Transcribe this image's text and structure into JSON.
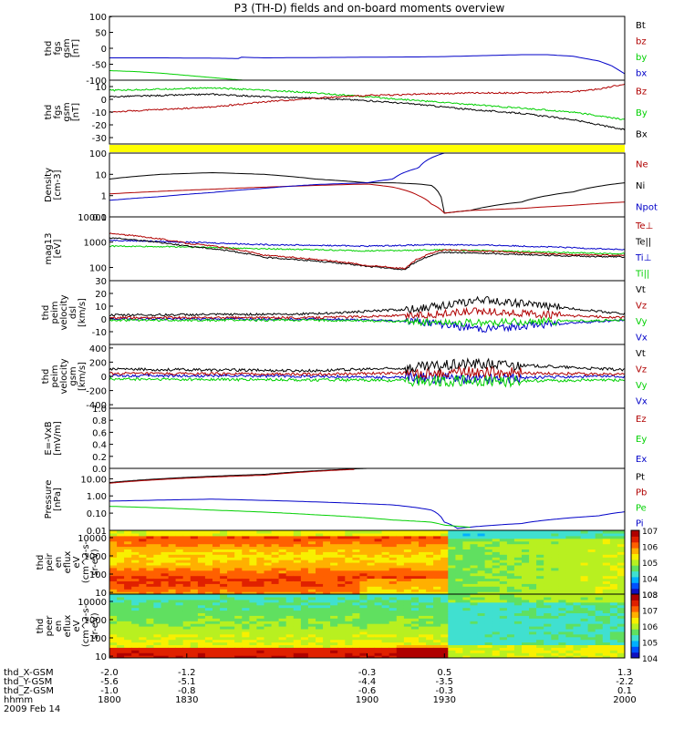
{
  "title": "P3 (TH-D) fields and on-board moments overview",
  "colors": {
    "black": "#000000",
    "red": "#b00000",
    "green": "#00d000",
    "blue": "#0000c8",
    "yellow": "#ffff00",
    "bright_red": "#ff0000"
  },
  "chart_data": [
    {
      "type": "line",
      "name": "fgs_gsm_1",
      "ylabel": [
        "thd",
        "fgs",
        "gsm",
        "[nT]"
      ],
      "ylim": [
        -100,
        100
      ],
      "yticks": [
        "100",
        "50",
        "0",
        "-50",
        "-100"
      ],
      "legend": [
        {
          "label": "Bt",
          "color": "#000000"
        },
        {
          "label": "bz",
          "color": "#b00000"
        },
        {
          "label": "by",
          "color": "#00d000"
        },
        {
          "label": "bx",
          "color": "#0000c8"
        }
      ],
      "series": [
        {
          "name": "bx",
          "color": "#0000c8",
          "x": [
            1800,
            1820,
            1840,
            1850,
            1851,
            1860,
            1880,
            1900,
            1920,
            1930,
            1940,
            1950,
            1960,
            1970,
            1980,
            1990,
            1995,
            2000
          ],
          "y": [
            -30,
            -30,
            -31,
            -32,
            -28,
            -30,
            -29,
            -28,
            -27,
            -26,
            -24,
            -22,
            -20,
            -20,
            -25,
            -40,
            -55,
            -80
          ]
        },
        {
          "name": "by",
          "color": "#00d000",
          "x": [
            1800,
            1810,
            1820,
            1830,
            1840,
            1850,
            1860
          ],
          "y": [
            -70,
            -73,
            -78,
            -85,
            -92,
            -99,
            -104
          ]
        },
        {
          "name": "Bt",
          "color": "#000000",
          "x": [
            1800,
            1801
          ],
          "y": [
            98,
            100
          ]
        },
        {
          "name": "bz",
          "color": "#b00000",
          "x": [
            1800,
            1801
          ],
          "y": [
            100,
            100
          ]
        }
      ]
    },
    {
      "type": "line",
      "name": "fgs_gsm_2",
      "ylabel": [
        "thd",
        "fgs",
        "gsm",
        "[nT]"
      ],
      "ylim": [
        -35,
        15
      ],
      "yticks": [
        "10",
        "0",
        "-10",
        "-20",
        "-30"
      ],
      "legend": [
        {
          "label": "Bz",
          "color": "#b00000"
        },
        {
          "label": "By",
          "color": "#00d000"
        },
        {
          "label": "Bx",
          "color": "#000000"
        }
      ],
      "series": [
        {
          "name": "By",
          "color": "#00d000",
          "x": [
            1800,
            1820,
            1840,
            1860,
            1880,
            1900,
            1920,
            1940,
            1960,
            1980,
            1990,
            2000
          ],
          "y": [
            7,
            8,
            9,
            7,
            5,
            2,
            -1,
            -4,
            -7,
            -10,
            -13,
            -16
          ]
        },
        {
          "name": "Bx",
          "color": "#000000",
          "x": [
            1800,
            1820,
            1840,
            1860,
            1880,
            1900,
            1920,
            1940,
            1960,
            1980,
            1990,
            2000
          ],
          "y": [
            2,
            3,
            4,
            2,
            1,
            -1,
            -4,
            -8,
            -11,
            -16,
            -20,
            -24
          ]
        },
        {
          "name": "Bz",
          "color": "#b00000",
          "x": [
            1800,
            1820,
            1840,
            1860,
            1880,
            1900,
            1920,
            1940,
            1960,
            1980,
            1990,
            2000
          ],
          "y": [
            -10,
            -8,
            -6,
            -2,
            1,
            3,
            4,
            5,
            5,
            6,
            8,
            12
          ]
        }
      ]
    },
    {
      "type": "bar",
      "name": "mode_bar",
      "ylabel": [],
      "color": "#ffff00"
    },
    {
      "type": "line",
      "name": "density",
      "ylabel": [
        "Density",
        "[cm-3]"
      ],
      "yscale": "log",
      "ylim": [
        0.1,
        100
      ],
      "yticks": [
        "100",
        "10",
        "1",
        "0.1"
      ],
      "legend": [
        {
          "label": "Ne",
          "color": "#b00000"
        },
        {
          "label": "Ni",
          "color": "#000000"
        },
        {
          "label": "Npot",
          "color": "#0000c8"
        }
      ],
      "series": [
        {
          "name": "Ni",
          "color": "#000000",
          "x": [
            1800,
            1820,
            1840,
            1860,
            1880,
            1900,
            1910,
            1920,
            1925,
            1930,
            1940,
            1960,
            1980,
            2000
          ],
          "y": [
            6,
            10,
            12,
            10,
            6,
            4,
            4,
            3.5,
            3,
            0.15,
            0.2,
            0.5,
            1.5,
            4
          ]
        },
        {
          "name": "Ne",
          "color": "#b00000",
          "x": [
            1800,
            1820,
            1840,
            1860,
            1880,
            1900,
            1910,
            1920,
            1925,
            1930,
            1940,
            1960,
            1980,
            2000
          ],
          "y": [
            1.2,
            1.6,
            2,
            2.5,
            3,
            3.5,
            2.5,
            1,
            0.4,
            0.15,
            0.2,
            0.25,
            0.35,
            0.5
          ]
        },
        {
          "name": "Npot",
          "color": "#0000c8",
          "x": [
            1800,
            1820,
            1840,
            1860,
            1880,
            1900,
            1910,
            1920,
            1930
          ],
          "y": [
            0.6,
            0.9,
            1.4,
            2.2,
            3.3,
            4,
            6,
            20,
            100
          ]
        }
      ]
    },
    {
      "type": "line",
      "name": "temperature",
      "ylabel": [
        "mag13",
        "[eV]"
      ],
      "yscale": "log",
      "ylim": [
        30,
        10000
      ],
      "yticks": [
        "10000",
        "1000",
        "100"
      ],
      "legend": [
        {
          "label": "Te⊥",
          "color": "#b00000"
        },
        {
          "label": "Te||",
          "color": "#000000"
        },
        {
          "label": "Ti⊥",
          "color": "#0000c8"
        },
        {
          "label": "Ti||",
          "color": "#00d000"
        }
      ],
      "series": [
        {
          "name": "Ti⊥",
          "color": "#0000c8",
          "x": [
            1800,
            1830,
            1860,
            1900,
            1930,
            1950,
            1980,
            2000
          ],
          "y": [
            1200,
            1000,
            800,
            700,
            800,
            750,
            600,
            500
          ]
        },
        {
          "name": "Ti||",
          "color": "#00d000",
          "x": [
            1800,
            1830,
            1860,
            1900,
            1930,
            1950,
            1980,
            2000
          ],
          "y": [
            700,
            650,
            550,
            450,
            500,
            450,
            380,
            350
          ]
        },
        {
          "name": "Te||",
          "color": "#000000",
          "x": [
            1800,
            1830,
            1860,
            1900,
            1915,
            1930,
            1950,
            1980,
            2000
          ],
          "y": [
            1500,
            700,
            250,
            110,
            80,
            400,
            350,
            280,
            260
          ]
        },
        {
          "name": "Te⊥",
          "color": "#b00000",
          "x": [
            1800,
            1830,
            1860,
            1900,
            1915,
            1930,
            1950,
            1980,
            2000
          ],
          "y": [
            2200,
            900,
            300,
            120,
            90,
            500,
            420,
            320,
            300
          ]
        }
      ]
    },
    {
      "type": "line",
      "name": "peim_velocity_dsl",
      "ylabel": [
        "thd",
        "peim",
        "velocity",
        "dsl",
        "[km/s]"
      ],
      "ylim": [
        -20,
        30
      ],
      "yticks": [
        "30",
        "20",
        "10",
        "0",
        "-10"
      ],
      "legend": [
        {
          "label": "Vt",
          "color": "#000000"
        },
        {
          "label": "Vz",
          "color": "#b00000"
        },
        {
          "label": "Vy",
          "color": "#00d000"
        },
        {
          "label": "Vx",
          "color": "#0000c8"
        }
      ],
      "series": [
        {
          "name": "Vx",
          "color": "#0000c8",
          "x": [
            1800,
            1880,
            1920,
            1945,
            1970,
            2000
          ],
          "y": [
            0,
            0,
            -2,
            -8,
            -4,
            -1
          ]
        },
        {
          "name": "Vy",
          "color": "#00d000",
          "x": [
            1800,
            1880,
            1920,
            1945,
            1970,
            2000
          ],
          "y": [
            -1,
            -1,
            -2,
            -3,
            -2,
            -1
          ]
        },
        {
          "name": "Vz",
          "color": "#b00000",
          "x": [
            1800,
            1880,
            1920,
            1945,
            1970,
            2000
          ],
          "y": [
            1,
            1,
            3,
            6,
            3,
            1
          ]
        },
        {
          "name": "Vt",
          "color": "#000000",
          "x": [
            1800,
            1880,
            1920,
            1945,
            1970,
            2000
          ],
          "y": [
            3,
            4,
            8,
            15,
            10,
            4
          ]
        }
      ]
    },
    {
      "type": "line",
      "name": "peim_velocity_gsm",
      "ylabel": [
        "thd",
        "peim",
        "velocity",
        "gsm",
        "[km/s]"
      ],
      "ylim": [
        -450,
        450
      ],
      "yticks": [
        "400",
        "200",
        "0",
        "-200",
        "-400"
      ],
      "legend": [
        {
          "label": "Vt",
          "color": "#000000"
        },
        {
          "label": "Vz",
          "color": "#b00000"
        },
        {
          "label": "Vy",
          "color": "#00d000"
        },
        {
          "label": "Vx",
          "color": "#0000c8"
        }
      ],
      "series": [
        {
          "name": "Vx",
          "color": "#0000c8",
          "x": [
            1800,
            1880,
            1920,
            1940,
            1970,
            2000
          ],
          "y": [
            10,
            0,
            -20,
            -40,
            -10,
            0
          ]
        },
        {
          "name": "Vy",
          "color": "#00d000",
          "x": [
            1800,
            1880,
            1920,
            1940,
            1970,
            2000
          ],
          "y": [
            -40,
            -50,
            -60,
            -70,
            -60,
            -50
          ]
        },
        {
          "name": "Vz",
          "color": "#b00000",
          "x": [
            1800,
            1880,
            1920,
            1940,
            1970,
            2000
          ],
          "y": [
            40,
            30,
            50,
            60,
            40,
            30
          ]
        },
        {
          "name": "Vt",
          "color": "#000000",
          "x": [
            1800,
            1880,
            1920,
            1940,
            1970,
            2000
          ],
          "y": [
            100,
            80,
            120,
            180,
            140,
            90
          ]
        }
      ]
    },
    {
      "type": "line",
      "name": "e_vxb",
      "ylabel": [
        "E=-VxB",
        "[mV/m]"
      ],
      "ylim": [
        0,
        1
      ],
      "yticks": [
        "1.0",
        "0.8",
        "0.6",
        "0.4",
        "0.2",
        "0.0"
      ],
      "legend": [
        {
          "label": "Ez",
          "color": "#b00000"
        },
        {
          "label": "Ey",
          "color": "#00d000"
        },
        {
          "label": "Ex",
          "color": "#0000c8"
        }
      ],
      "series": []
    },
    {
      "type": "line",
      "name": "pressure",
      "ylabel": [
        "Pressure",
        "[nPa]"
      ],
      "yscale": "log",
      "ylim": [
        0.01,
        40
      ],
      "yticks": [
        "10.00",
        "1.00",
        "0.10",
        "0.01"
      ],
      "legend": [
        {
          "label": "Pt",
          "color": "#000000"
        },
        {
          "label": "Pb",
          "color": "#b00000"
        },
        {
          "label": "Pe",
          "color": "#00d000"
        },
        {
          "label": "Pi",
          "color": "#0000c8"
        }
      ],
      "series": [
        {
          "name": "Pi",
          "color": "#0000c8",
          "x": [
            1800,
            1840,
            1880,
            1910,
            1925,
            1930,
            1935,
            1960,
            1990,
            2000
          ],
          "y": [
            0.5,
            0.65,
            0.45,
            0.3,
            0.15,
            0.03,
            0.013,
            0.025,
            0.07,
            0.12
          ]
        },
        {
          "name": "Pe",
          "color": "#00d000",
          "x": [
            1800,
            1840,
            1880,
            1910,
            1925,
            1930,
            1940
          ],
          "y": [
            0.25,
            0.15,
            0.08,
            0.04,
            0.03,
            0.02,
            0.015
          ]
        },
        {
          "name": "Pt",
          "color": "#000000",
          "x": [
            1800,
            1860,
            1900
          ],
          "y": [
            6,
            18,
            40
          ]
        },
        {
          "name": "Pb",
          "color": "#b00000",
          "x": [
            1800,
            1860,
            1895
          ],
          "y": [
            5.5,
            16,
            35
          ]
        }
      ]
    },
    {
      "type": "heatmap",
      "name": "peir_en_eflux",
      "ylabel": [
        "thd",
        "peir",
        "en",
        "eflux",
        "eV",
        "(cm^2-s-",
        "sr-eV)"
      ],
      "yscale": "log",
      "ylim": [
        8,
        25000
      ],
      "yticks": [
        "10000",
        "1000",
        "100",
        "10"
      ],
      "colorbar": {
        "min_exp": 3,
        "max_exp": 7,
        "ticks": [
          "10^7",
          "10^6",
          "10^5",
          "10^4",
          "10^3"
        ]
      },
      "boundary_x": 1930
    },
    {
      "type": "heatmap",
      "name": "peer_en_eflux",
      "ylabel": [
        "thd",
        "peer",
        "en",
        "eflux",
        "eV",
        "(cm^2-s-",
        "sr-eV)"
      ],
      "yscale": "log",
      "ylim": [
        8,
        25000
      ],
      "yticks": [
        "10000",
        "1000",
        "100",
        "10"
      ],
      "colorbar": {
        "min_exp": 4,
        "max_exp": 8,
        "ticks": [
          "10^8",
          "10^7",
          "10^6",
          "10^5",
          "10^4"
        ]
      },
      "boundary_x": 1930
    }
  ],
  "x_axis": {
    "range": [
      1800,
      2000
    ],
    "ticks_x": [
      1800,
      1830,
      1900,
      1930,
      2000
    ],
    "rows": [
      {
        "label": "thd_X-GSM",
        "values": [
          "-2.0",
          "-1.2",
          "-0.3",
          "0.5",
          "1.3"
        ]
      },
      {
        "label": "thd_Y-GSM",
        "values": [
          "-5.6",
          "-5.1",
          "-4.4",
          "-3.5",
          "-2.2"
        ]
      },
      {
        "label": "thd_Z-GSM",
        "values": [
          "-1.0",
          "-0.8",
          "-0.6",
          "-0.3",
          "0.1"
        ]
      },
      {
        "label": "hhmm",
        "values": [
          "1800",
          "1830",
          "1900",
          "1930",
          "2000"
        ]
      }
    ],
    "date": "2009 Feb 14"
  }
}
